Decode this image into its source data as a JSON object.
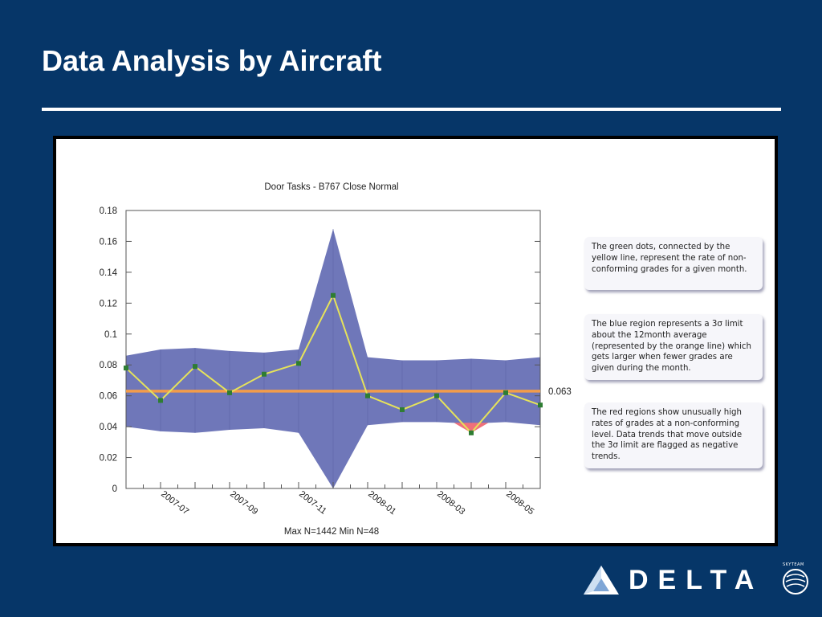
{
  "slide": {
    "title": "Data Analysis by Aircraft"
  },
  "chart_data": {
    "type": "line",
    "title": "Door Tasks - B767 Close Normal",
    "footer": "Max N=1442 Min N=48",
    "ylim": [
      0,
      0.18
    ],
    "yticks": [
      "0",
      "0.02",
      "0.04",
      "0.06",
      "0.08",
      "0.1",
      "0.12",
      "0.14",
      "0.16",
      "0.18"
    ],
    "xtick_labels": [
      "2007-07",
      "2007-09",
      "2007-11",
      "2008-01",
      "2008-03",
      "2008-05"
    ],
    "x": [
      "2007-06",
      "2007-07",
      "2007-08",
      "2007-09",
      "2007-10",
      "2007-11",
      "2007-12",
      "2008-01",
      "2008-02",
      "2008-03",
      "2008-04",
      "2008-05",
      "2008-06"
    ],
    "series": [
      {
        "values": [
          0.078,
          0.057,
          0.079,
          0.062,
          0.074,
          0.081,
          0.125,
          0.06,
          0.051,
          0.06,
          0.036,
          0.062,
          0.054
        ]
      }
    ],
    "upper_limit": [
      0.086,
      0.09,
      0.091,
      0.089,
      0.088,
      0.09,
      0.168,
      0.085,
      0.083,
      0.083,
      0.084,
      0.083,
      0.085
    ],
    "lower_limit": [
      0.04,
      0.037,
      0.036,
      0.038,
      0.039,
      0.036,
      0.0,
      0.041,
      0.043,
      0.043,
      0.042,
      0.043,
      0.041
    ],
    "average": 0.063,
    "average_label": "0.063",
    "colors": {
      "band": "#6f77b9",
      "line": "#e6e35a",
      "point": "#2e7d32",
      "average": "#f39c4a",
      "flag": "#f0707a"
    },
    "grid": false
  },
  "notes": [
    {
      "text": "The green dots, connected by the yellow line, represent the rate of non-conforming grades for a given month."
    },
    {
      "text": "The blue region represents a 3σ limit about the 12month average (represented by the orange line) which gets larger when fewer grades are given during the month."
    },
    {
      "text": "The red regions show unusually high rates of grades at a non-conforming level. Data trends that move outside the 3σ limit are flagged as negative trends."
    }
  ],
  "logo": {
    "word": "DELTA",
    "alliance": "SKYTEAM"
  }
}
